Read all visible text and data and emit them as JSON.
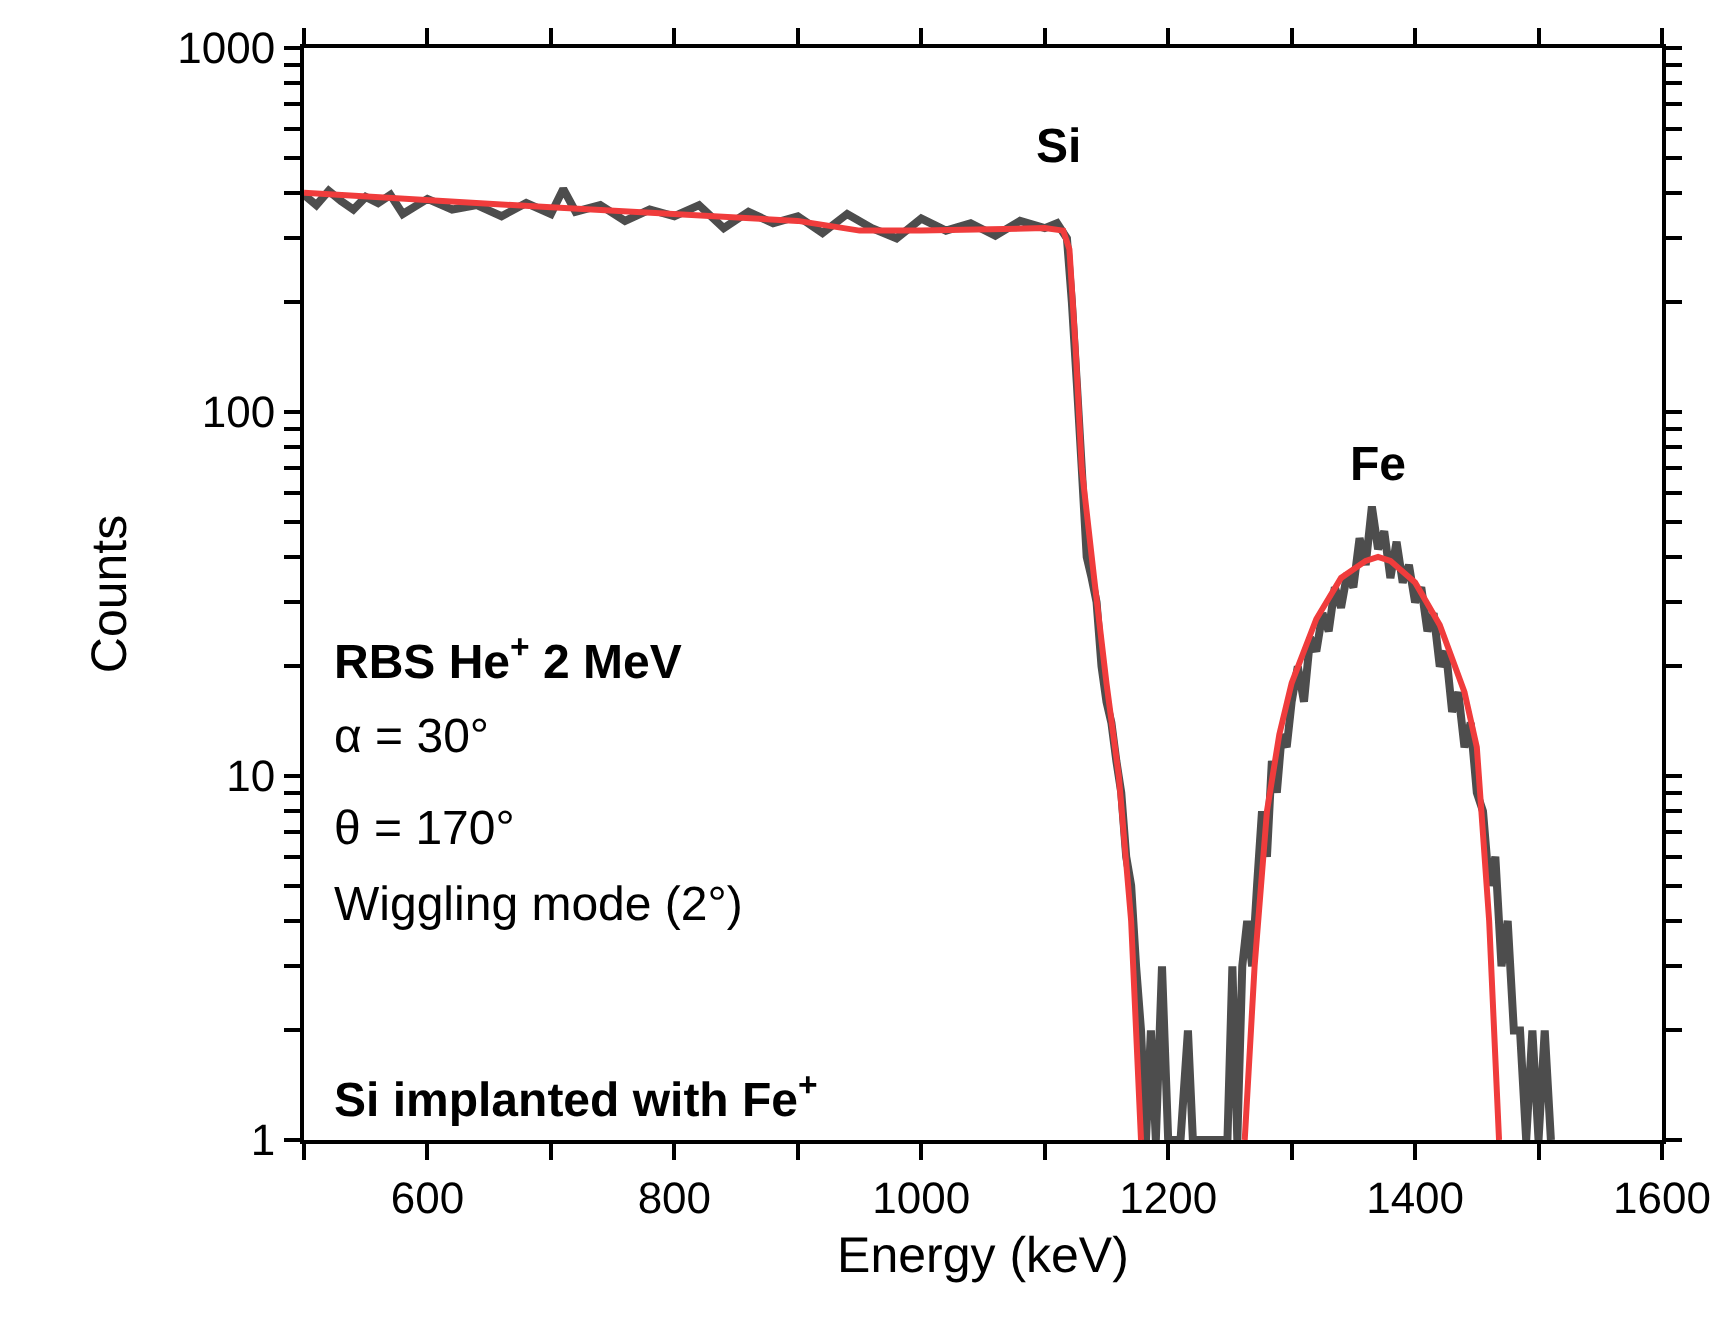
{
  "chart_data": {
    "type": "line",
    "xlabel": "Energy (keV)",
    "ylabel": "Counts",
    "log": "y",
    "marker": "none",
    "line_style": "solid",
    "xlim": [
      500,
      1600
    ],
    "ylim": [
      1,
      1000
    ],
    "xticks": [
      {
        "value": 500,
        "label": null
      },
      600,
      {
        "value": 700,
        "label": null
      },
      800,
      {
        "value": 900,
        "label": null
      },
      1000,
      {
        "value": 1100,
        "label": null
      },
      1200,
      {
        "value": 1300,
        "label": null
      },
      1400,
      {
        "value": 1500,
        "label": null
      },
      1600
    ],
    "yticks": [
      1,
      {
        "value": 2,
        "label": null
      },
      {
        "value": 3,
        "label": null
      },
      {
        "value": 4,
        "label": null
      },
      {
        "value": 5,
        "label": null
      },
      {
        "value": 6,
        "label": null
      },
      {
        "value": 7,
        "label": null
      },
      {
        "value": 8,
        "label": null
      },
      {
        "value": 9,
        "label": null
      },
      10,
      {
        "value": 20,
        "label": null
      },
      {
        "value": 30,
        "label": null
      },
      {
        "value": 40,
        "label": null
      },
      {
        "value": 50,
        "label": null
      },
      {
        "value": 60,
        "label": null
      },
      {
        "value": 70,
        "label": null
      },
      {
        "value": 80,
        "label": null
      },
      {
        "value": 90,
        "label": null
      },
      100,
      {
        "value": 200,
        "label": null
      },
      {
        "value": 300,
        "label": null
      },
      {
        "value": 400,
        "label": null
      },
      {
        "value": 500,
        "label": null
      },
      {
        "value": 600,
        "label": null
      },
      {
        "value": 700,
        "label": null
      },
      {
        "value": 800,
        "label": null
      },
      {
        "value": 900,
        "label": null
      },
      1000
    ],
    "series": [
      {
        "color": "#4d4d4d",
        "x": [
          500,
          510,
          520,
          530,
          540,
          550,
          560,
          570,
          580,
          600,
          620,
          640,
          660,
          680,
          700,
          710,
          720,
          740,
          760,
          780,
          800,
          820,
          840,
          860,
          880,
          900,
          920,
          940,
          960,
          980,
          1000,
          1020,
          1040,
          1060,
          1080,
          1100,
          1110,
          1118,
          1122,
          1126,
          1130,
          1134,
          1138,
          1142,
          1146,
          1150,
          1154,
          1158,
          1162,
          1166,
          1170,
          1174,
          1178,
          1182,
          1186,
          1190,
          1195,
          1200,
          1210,
          1216,
          1220,
          1240,
          1248,
          1252,
          1256,
          1260,
          1264,
          1268,
          1272,
          1276,
          1280,
          1284,
          1288,
          1292,
          1296,
          1300,
          1305,
          1310,
          1315,
          1320,
          1325,
          1330,
          1335,
          1340,
          1345,
          1350,
          1355,
          1360,
          1365,
          1370,
          1375,
          1380,
          1385,
          1390,
          1395,
          1400,
          1405,
          1410,
          1415,
          1420,
          1425,
          1430,
          1435,
          1440,
          1445,
          1450,
          1455,
          1460,
          1465,
          1470,
          1475,
          1480,
          1485,
          1490,
          1495,
          1500,
          1505,
          1510
        ],
        "values": [
          395,
          370,
          405,
          380,
          360,
          390,
          375,
          395,
          350,
          385,
          360,
          370,
          345,
          375,
          350,
          410,
          355,
          370,
          335,
          360,
          345,
          370,
          320,
          355,
          330,
          345,
          310,
          350,
          320,
          300,
          340,
          315,
          330,
          305,
          335,
          320,
          330,
          300,
          200,
          120,
          70,
          40,
          35,
          30,
          20,
          16,
          14,
          11,
          9,
          6,
          5,
          3,
          2,
          1,
          2,
          1,
          3,
          1,
          1,
          2,
          1,
          1,
          1,
          3,
          1,
          3,
          4,
          3,
          5,
          8,
          6,
          11,
          9,
          13,
          12,
          16,
          20,
          16,
          24,
          22,
          28,
          25,
          33,
          29,
          36,
          33,
          45,
          38,
          55,
          42,
          47,
          35,
          44,
          34,
          38,
          30,
          33,
          25,
          28,
          20,
          22,
          15,
          17,
          12,
          14,
          9,
          8,
          5,
          6,
          3,
          4,
          2,
          2,
          1,
          2,
          1,
          2,
          1
        ]
      },
      {
        "color": "#f03c3c",
        "x": [
          500,
          700,
          900,
          950,
          1000,
          1100,
          1115,
          1120,
          1125,
          1130,
          1140,
          1150,
          1160,
          1170,
          1178,
          null,
          1262,
          1270,
          1280,
          1290,
          1300,
          1320,
          1340,
          1360,
          1370,
          1380,
          1400,
          1420,
          1440,
          1450,
          1460,
          1468
        ],
        "values": [
          400,
          365,
          335,
          315,
          315,
          320,
          315,
          280,
          150,
          70,
          35,
          18,
          10,
          4,
          1,
          null,
          1,
          3,
          8,
          13,
          18,
          27,
          35,
          39,
          40,
          39,
          34,
          26,
          17,
          12,
          4,
          1
        ]
      }
    ],
    "annotations": [
      "Si",
      "Fe",
      "RBS He$^{+}$ 2 MeV",
      "α = 30°",
      "θ = 170°",
      "Wiggling mode (2°)",
      "Si implanted with Fe$^{+}$"
    ]
  }
}
